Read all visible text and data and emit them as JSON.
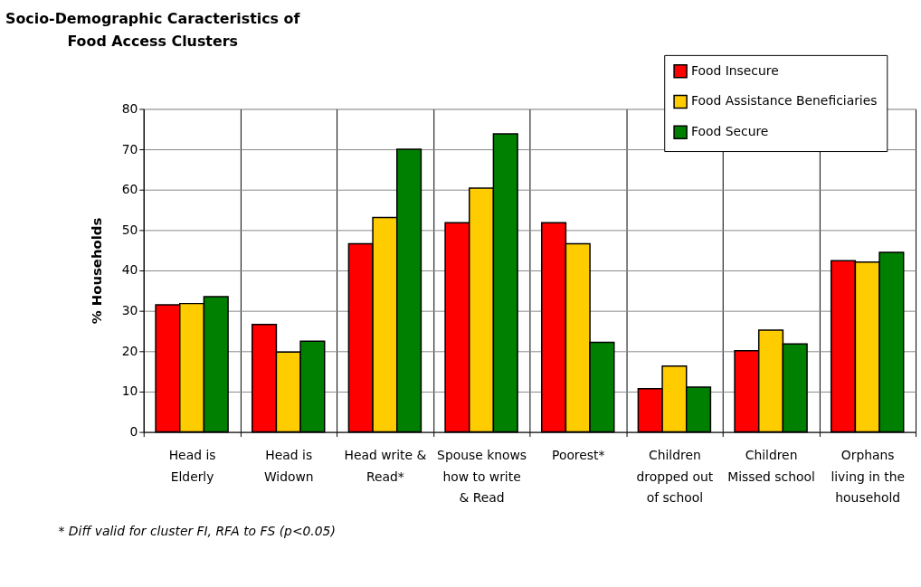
{
  "chart_data": {
    "type": "bar",
    "title": "Socio-Demographic Caracteristics of Food Access Clusters",
    "ylabel": "% Households",
    "categories": [
      "Head is Elderly",
      "Head is Widown",
      "Head write & Read*",
      "Spouse knows how to write & Read",
      "Poorest*",
      "Children dropped out of school",
      "Children Missed school",
      "Orphans living in the household"
    ],
    "series": [
      {
        "name": "Food Insecure",
        "color": "#ff0000",
        "values": [
          31.5,
          26.6,
          46.6,
          51.8,
          51.8,
          10.7,
          20.1,
          42.4
        ]
      },
      {
        "name": "Food Assistance Beneficiaries",
        "color": "#ffcc00",
        "values": [
          31.8,
          19.8,
          53.1,
          60.4,
          46.6,
          16.3,
          25.2,
          42.1
        ]
      },
      {
        "name": "Food Secure",
        "color": "#008000",
        "values": [
          33.5,
          22.5,
          70.0,
          73.8,
          22.2,
          11.1,
          21.8,
          44.5
        ]
      }
    ],
    "ylim": [
      0,
      80
    ],
    "yticks": [
      0,
      10,
      20,
      30,
      40,
      50,
      60,
      70,
      80
    ],
    "grid": true,
    "legend": "top right",
    "annotations": [
      "* Diff valid for cluster FI, RFA to FS (p<0.05)"
    ]
  }
}
